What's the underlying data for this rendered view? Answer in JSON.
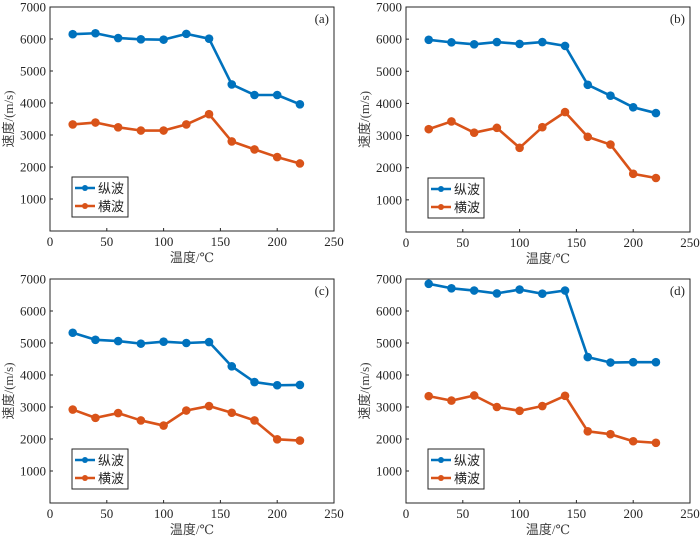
{
  "figure": {
    "colors": {
      "longitudinal": "#0072BD",
      "transverse": "#D95319",
      "axis": "#262626"
    }
  },
  "chart_data": [
    {
      "type": "line",
      "panel_label": "(a)",
      "xlabel": "温度/℃",
      "ylabel": "速度/(m/s)",
      "xlim": [
        0,
        250
      ],
      "ylim": [
        0,
        7000
      ],
      "xticks": [
        0,
        50,
        100,
        150,
        200,
        250
      ],
      "yticks": [
        1000,
        2000,
        3000,
        4000,
        5000,
        6000,
        7000
      ],
      "grid": false,
      "legend_position": "bottom-left",
      "x": [
        20,
        40,
        60,
        80,
        100,
        120,
        140,
        160,
        180,
        200,
        220
      ],
      "series": [
        {
          "name": "纵波",
          "color": "#0072BD",
          "values": [
            6150,
            6180,
            6030,
            5990,
            5980,
            6160,
            6010,
            4580,
            4250,
            4250,
            3960
          ]
        },
        {
          "name": "横波",
          "color": "#D95319",
          "values": [
            3330,
            3390,
            3240,
            3140,
            3140,
            3330,
            3650,
            2800,
            2550,
            2310,
            2110
          ]
        }
      ]
    },
    {
      "type": "line",
      "panel_label": "(b)",
      "xlabel": "温度/℃",
      "ylabel": "速度/(m/s)",
      "xlim": [
        0,
        250
      ],
      "ylim": [
        0,
        7000
      ],
      "xticks": [
        0,
        50,
        100,
        150,
        200,
        250
      ],
      "yticks": [
        1000,
        2000,
        3000,
        4000,
        5000,
        6000,
        7000
      ],
      "grid": false,
      "legend_position": "bottom-left",
      "x": [
        20,
        40,
        60,
        80,
        100,
        120,
        140,
        160,
        180,
        200,
        220
      ],
      "series": [
        {
          "name": "纵波",
          "color": "#0072BD",
          "values": [
            5980,
            5900,
            5840,
            5910,
            5850,
            5910,
            5790,
            4580,
            4240,
            3880,
            3700
          ]
        },
        {
          "name": "横波",
          "color": "#D95319",
          "values": [
            3200,
            3440,
            3090,
            3240,
            2620,
            3260,
            3730,
            2960,
            2720,
            1810,
            1680
          ]
        }
      ]
    },
    {
      "type": "line",
      "panel_label": "(c)",
      "xlabel": "温度/℃",
      "ylabel": "速度/(m/s)",
      "xlim": [
        0,
        250
      ],
      "ylim": [
        0,
        7000
      ],
      "xticks": [
        0,
        50,
        100,
        150,
        200,
        250
      ],
      "yticks": [
        1000,
        2000,
        3000,
        4000,
        5000,
        6000,
        7000
      ],
      "grid": false,
      "legend_position": "bottom-left",
      "x": [
        20,
        40,
        60,
        80,
        100,
        120,
        140,
        160,
        180,
        200,
        220
      ],
      "series": [
        {
          "name": "纵波",
          "color": "#0072BD",
          "values": [
            5320,
            5100,
            5060,
            4980,
            5040,
            5000,
            5030,
            4270,
            3780,
            3680,
            3690
          ]
        },
        {
          "name": "横波",
          "color": "#D95319",
          "values": [
            2920,
            2660,
            2810,
            2580,
            2420,
            2890,
            3030,
            2820,
            2580,
            1990,
            1950
          ]
        }
      ]
    },
    {
      "type": "line",
      "panel_label": "(d)",
      "xlabel": "温度/℃",
      "ylabel": "速度/(m/s)",
      "xlim": [
        0,
        250
      ],
      "ylim": [
        0,
        7000
      ],
      "xticks": [
        0,
        50,
        100,
        150,
        200,
        250
      ],
      "yticks": [
        1000,
        2000,
        3000,
        4000,
        5000,
        6000,
        7000
      ],
      "grid": false,
      "legend_position": "bottom-left",
      "x": [
        20,
        40,
        60,
        80,
        100,
        120,
        140,
        160,
        180,
        200,
        220
      ],
      "series": [
        {
          "name": "纵波",
          "color": "#0072BD",
          "values": [
            6850,
            6710,
            6640,
            6550,
            6670,
            6540,
            6640,
            4560,
            4390,
            4400,
            4400
          ]
        },
        {
          "name": "横波",
          "color": "#D95319",
          "values": [
            3340,
            3200,
            3360,
            3000,
            2880,
            3030,
            3350,
            2240,
            2150,
            1930,
            1880
          ]
        }
      ]
    }
  ]
}
